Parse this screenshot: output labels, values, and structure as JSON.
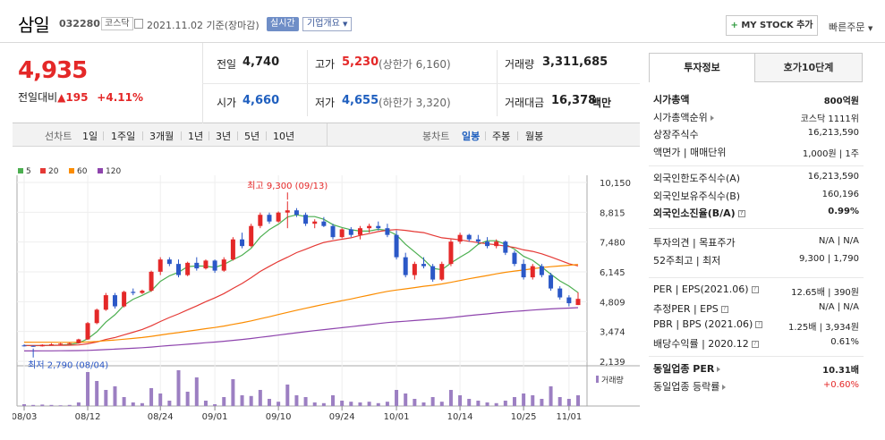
{
  "header": {
    "name": "삼일",
    "code": "032280",
    "market": "코스닥",
    "date_text": "2021.11.02 기준(장마감)",
    "realtime_label": "실시간",
    "corp_info_label": "기업개요",
    "mystock_label": "MY STOCK 추가",
    "quick_order_label": "빠른주문"
  },
  "price": {
    "current": "4,935",
    "change_label": "전일대비",
    "change_amount": "195",
    "change_pct": "+4.11%"
  },
  "quote": {
    "prev_label": "전일",
    "prev_val": "4,740",
    "open_label": "시가",
    "open_val": "4,660",
    "high_label": "고가",
    "high_val": "5,230",
    "upper_limit": "(상한가 6,160)",
    "low_label": "저가",
    "low_val": "4,655",
    "lower_limit": "(하한가 3,320)",
    "volume_label": "거래량",
    "volume_val": "3,311,685",
    "amount_label": "거래대금",
    "amount_val": "16,378",
    "amount_unit": "백만"
  },
  "periods": {
    "line_label": "선차트",
    "line_items": [
      "1일",
      "1주일",
      "3개월",
      "1년",
      "3년",
      "5년",
      "10년"
    ],
    "candle_label": "봉차트",
    "candle_items": [
      "일봉",
      "주봉",
      "월봉"
    ],
    "candle_active": "일봉"
  },
  "chart_data": {
    "type": "candlestick",
    "legend": [
      "5",
      "20",
      "60",
      "120"
    ],
    "legend_colors": [
      "#4caf50",
      "#e53935",
      "#fb8c00",
      "#8e44ad"
    ],
    "y_ticks": [
      "10,150",
      "8,815",
      "7,480",
      "6,145",
      "4,809",
      "3,474",
      "2,139"
    ],
    "y_tick_values": [
      10150,
      8815,
      7480,
      6145,
      4809,
      3474,
      2139
    ],
    "ylim": [
      2139,
      10150
    ],
    "x_ticks": [
      {
        "label": "08/03",
        "index": 0
      },
      {
        "label": "08/12",
        "index": 7
      },
      {
        "label": "08/24",
        "index": 15
      },
      {
        "label": "09/01",
        "index": 21
      },
      {
        "label": "09/10",
        "index": 28
      },
      {
        "label": "09/24",
        "index": 35
      },
      {
        "label": "10/01",
        "index": 41
      },
      {
        "label": "10/14",
        "index": 48
      },
      {
        "label": "10/25",
        "index": 55
      },
      {
        "label": "11/01",
        "index": 60
      }
    ],
    "max_annotation": {
      "label": "최고 9,300 (09/13)",
      "index": 29,
      "value": 9300
    },
    "min_annotation": {
      "label": "최저 2,790 (08/04)",
      "index": 1,
      "value": 2790
    },
    "volume_label": "거래량",
    "candles": [
      [
        2850,
        2900,
        2800,
        2830
      ],
      [
        2830,
        2850,
        2790,
        2810
      ],
      [
        2810,
        2900,
        2800,
        2880
      ],
      [
        2880,
        2950,
        2850,
        2900
      ],
      [
        2900,
        2960,
        2870,
        2930
      ],
      [
        2930,
        2980,
        2900,
        2950
      ],
      [
        2950,
        3150,
        2930,
        3120
      ],
      [
        3120,
        3900,
        3100,
        3850
      ],
      [
        3850,
        4500,
        3800,
        4450
      ],
      [
        4450,
        5200,
        4400,
        5100
      ],
      [
        5100,
        5200,
        4500,
        4600
      ],
      [
        4600,
        5300,
        4550,
        5250
      ],
      [
        5250,
        5400,
        5100,
        5200
      ],
      [
        5200,
        5350,
        5150,
        5300
      ],
      [
        5300,
        6200,
        5250,
        6150
      ],
      [
        6150,
        6800,
        6000,
        6700
      ],
      [
        6700,
        6800,
        6400,
        6500
      ],
      [
        6500,
        6700,
        5900,
        6000
      ],
      [
        6000,
        6600,
        5950,
        6550
      ],
      [
        6550,
        6800,
        6200,
        6300
      ],
      [
        6300,
        6700,
        6250,
        6650
      ],
      [
        6650,
        6700,
        6100,
        6200
      ],
      [
        6200,
        6800,
        6150,
        6700
      ],
      [
        6700,
        7700,
        6650,
        7600
      ],
      [
        7600,
        7900,
        7200,
        7300
      ],
      [
        7300,
        8300,
        7250,
        8200
      ],
      [
        8200,
        8800,
        8100,
        8700
      ],
      [
        8700,
        8800,
        8300,
        8400
      ],
      [
        8400,
        8850,
        8350,
        8800
      ],
      [
        8800,
        9300,
        8100,
        8900
      ],
      [
        8900,
        9000,
        8600,
        8700
      ],
      [
        8700,
        8800,
        8200,
        8300
      ],
      [
        8300,
        8500,
        8100,
        8400
      ],
      [
        8400,
        8600,
        8150,
        8200
      ],
      [
        8200,
        8300,
        7600,
        7700
      ],
      [
        7700,
        8100,
        7650,
        8050
      ],
      [
        8050,
        8150,
        7700,
        7800
      ],
      [
        7800,
        8200,
        7600,
        8100
      ],
      [
        8100,
        8300,
        7900,
        8200
      ],
      [
        8200,
        8400,
        8000,
        8100
      ],
      [
        8100,
        8300,
        7700,
        7800
      ],
      [
        7800,
        8000,
        6700,
        6800
      ],
      [
        6800,
        7000,
        5900,
        6000
      ],
      [
        6000,
        6600,
        5800,
        6500
      ],
      [
        6500,
        6800,
        6300,
        6400
      ],
      [
        6400,
        6500,
        5700,
        5800
      ],
      [
        5800,
        6600,
        5750,
        6500
      ],
      [
        6500,
        7600,
        6400,
        7500
      ],
      [
        7500,
        7900,
        7400,
        7800
      ],
      [
        7800,
        7850,
        7500,
        7600
      ],
      [
        7600,
        7800,
        7400,
        7500
      ],
      [
        7500,
        7700,
        7200,
        7300
      ],
      [
        7300,
        7600,
        7200,
        7500
      ],
      [
        7500,
        7550,
        6900,
        7000
      ],
      [
        7000,
        7100,
        6400,
        6500
      ],
      [
        6500,
        6700,
        5800,
        5900
      ],
      [
        5900,
        6500,
        5800,
        6400
      ],
      [
        6400,
        6500,
        5900,
        6000
      ],
      [
        6000,
        6100,
        5300,
        5400
      ],
      [
        5400,
        5500,
        4900,
        5000
      ],
      [
        5000,
        5100,
        4600,
        4740
      ],
      [
        4660,
        5230,
        4655,
        4935
      ]
    ],
    "volumes": [
      0.05,
      0.03,
      0.04,
      0.03,
      0.02,
      0.03,
      0.1,
      0.95,
      0.7,
      0.45,
      0.55,
      0.25,
      0.1,
      0.08,
      0.5,
      0.35,
      0.15,
      1.0,
      0.4,
      0.8,
      0.15,
      0.05,
      0.25,
      0.75,
      0.3,
      0.28,
      0.45,
      0.2,
      0.12,
      0.6,
      0.3,
      0.25,
      0.1,
      0.08,
      0.3,
      0.15,
      0.12,
      0.1,
      0.12,
      0.08,
      0.12,
      0.45,
      0.35,
      0.2,
      0.1,
      0.25,
      0.12,
      0.45,
      0.3,
      0.2,
      0.15,
      0.1,
      0.08,
      0.15,
      0.25,
      0.35,
      0.3,
      0.2,
      0.55,
      0.25,
      0.2,
      0.3
    ]
  },
  "right": {
    "tab_invest": "투자정보",
    "tab_order": "호가10단계",
    "rows1": [
      {
        "label": "시가총액",
        "value": "800억원",
        "bold": true
      },
      {
        "label": "시가총액순위",
        "value": "코스닥 1111위",
        "arrow": true
      },
      {
        "label": "상장주식수",
        "value": "16,213,590"
      },
      {
        "label": "액면가 | 매매단위",
        "value": "1,000원 | 1주"
      }
    ],
    "rows2": [
      {
        "label": "외국인한도주식수(A)",
        "value": "16,213,590"
      },
      {
        "label": "외국인보유주식수(B)",
        "value": "160,196"
      },
      {
        "label": "외국인소진율(B/A)",
        "value": "0.99%",
        "bold": true,
        "q": true
      }
    ],
    "rows3": [
      {
        "label": "투자의견 | 목표주가",
        "value": "N/A | N/A"
      },
      {
        "label": "52주최고 | 최저",
        "value": "9,300 | 1,790"
      }
    ],
    "rows4": [
      {
        "label": "PER | EPS(2021.06)",
        "value": "12.65배 | 390원",
        "q": true
      },
      {
        "label": "추정PER | EPS",
        "value": "N/A | N/A",
        "q": true
      },
      {
        "label": "PBR | BPS (2021.06)",
        "value": "1.25배 | 3,934원",
        "q": true
      },
      {
        "label": "배당수익률 | 2020.12",
        "value": "0.61%",
        "q": true
      }
    ],
    "rows5": [
      {
        "label": "동일업종 PER",
        "value": "10.31배",
        "bold": true,
        "arrow": true
      },
      {
        "label": "동일업종 등락률",
        "value": "+0.60%",
        "red": true,
        "arrow": true
      }
    ]
  }
}
